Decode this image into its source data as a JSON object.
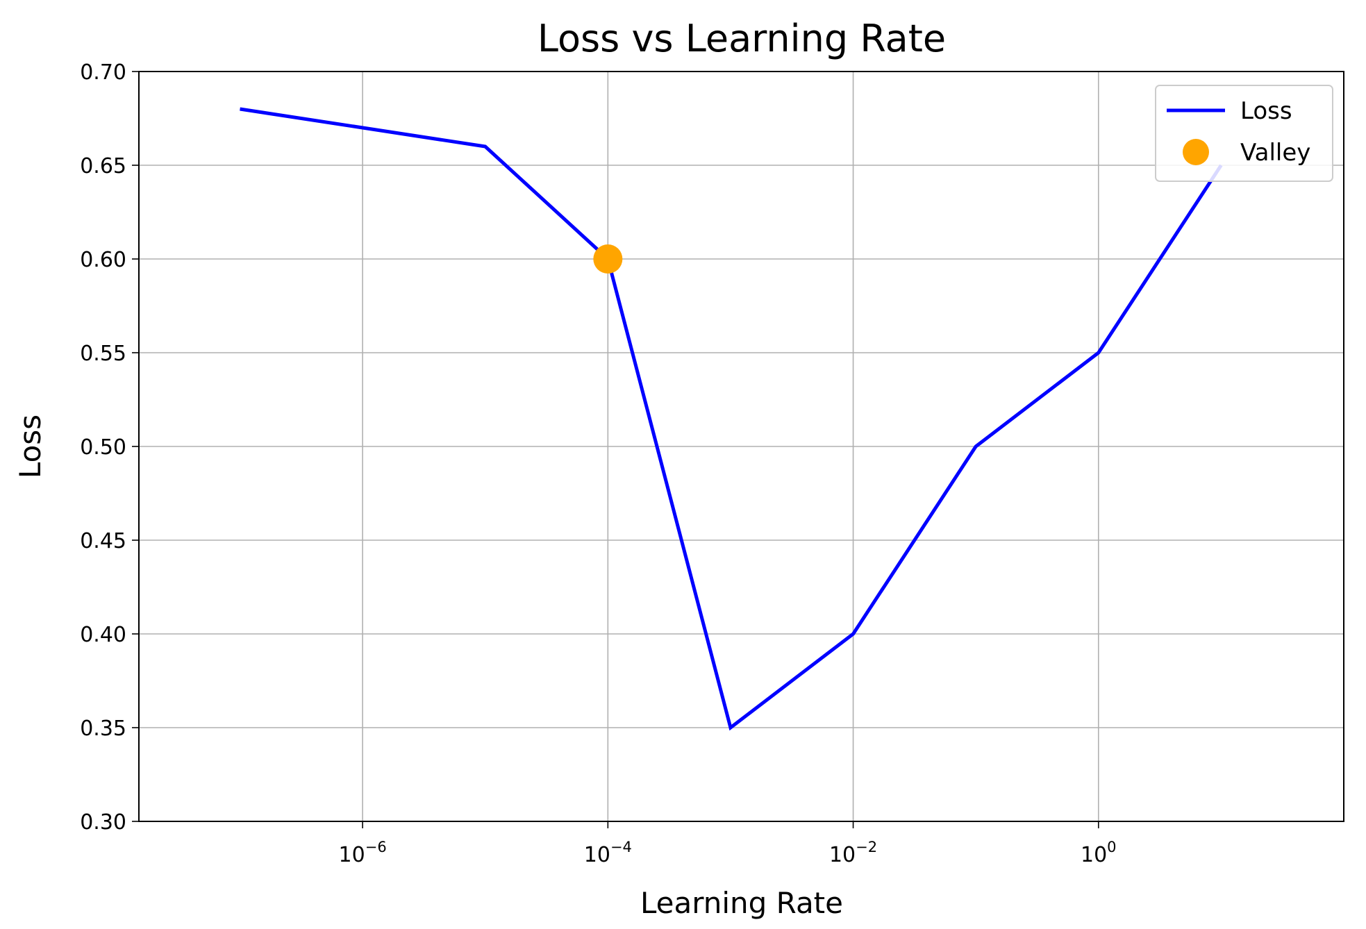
{
  "chart_data": {
    "type": "line",
    "title": "Loss vs Learning Rate",
    "xlabel": "Learning Rate",
    "ylabel": "Loss",
    "xscale": "log",
    "xlim": [
      1.5e-08,
      100
    ],
    "ylim": [
      0.3,
      0.7
    ],
    "xticks": [
      {
        "value": 1e-06,
        "base": "10",
        "exp": "−6"
      },
      {
        "value": 0.0001,
        "base": "10",
        "exp": "−4"
      },
      {
        "value": 0.01,
        "base": "10",
        "exp": "−2"
      },
      {
        "value": 1,
        "base": "10",
        "exp": "0"
      }
    ],
    "yticks": [
      "0.30",
      "0.35",
      "0.40",
      "0.45",
      "0.50",
      "0.55",
      "0.60",
      "0.65",
      "0.70"
    ],
    "grid": true,
    "legend_position": "top-right",
    "series": [
      {
        "name": "Loss",
        "color": "#0000ff",
        "marker": "line",
        "x": [
          1e-07,
          1e-05,
          0.0001,
          0.001,
          0.01,
          0.1,
          1,
          10
        ],
        "y": [
          0.68,
          0.66,
          0.6,
          0.35,
          0.4,
          0.5,
          0.55,
          0.65
        ]
      },
      {
        "name": "Valley",
        "color": "#ffa500",
        "marker": "circle",
        "x": [
          0.0001
        ],
        "y": [
          0.6
        ]
      }
    ]
  }
}
